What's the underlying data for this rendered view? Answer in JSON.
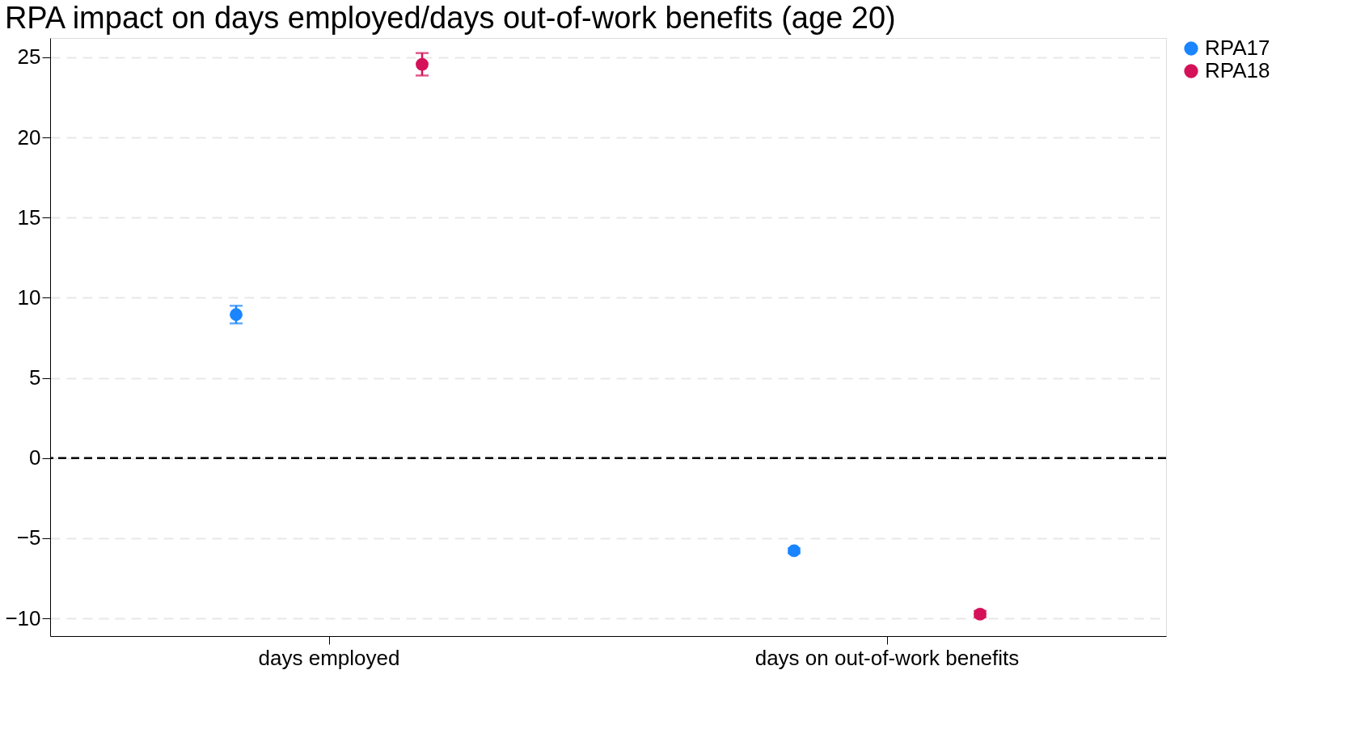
{
  "chart_data": {
    "type": "scatter",
    "title": "RPA impact on days employed/days out-of-work benefits (age 20)",
    "categories": [
      "days employed",
      "days on out-of-work benefits"
    ],
    "series": [
      {
        "name": "RPA17",
        "color": "#1a85ff",
        "values": [
          8.95,
          -5.78
        ],
        "errors": [
          0.55,
          0.15
        ]
      },
      {
        "name": "RPA18",
        "color": "#d41159",
        "values": [
          24.56,
          -9.73
        ],
        "errors": [
          0.7,
          0.2
        ]
      }
    ],
    "ylim": [
      -11.1,
      26.2
    ],
    "yticks": [
      -10,
      -5,
      0,
      5,
      10,
      15,
      20,
      25
    ],
    "ref_lines": [
      {
        "axis": "y",
        "value": 0,
        "color": "#000000",
        "line_style": "dashed"
      }
    ],
    "grid": "y",
    "legend": "right",
    "marker": "circle"
  }
}
